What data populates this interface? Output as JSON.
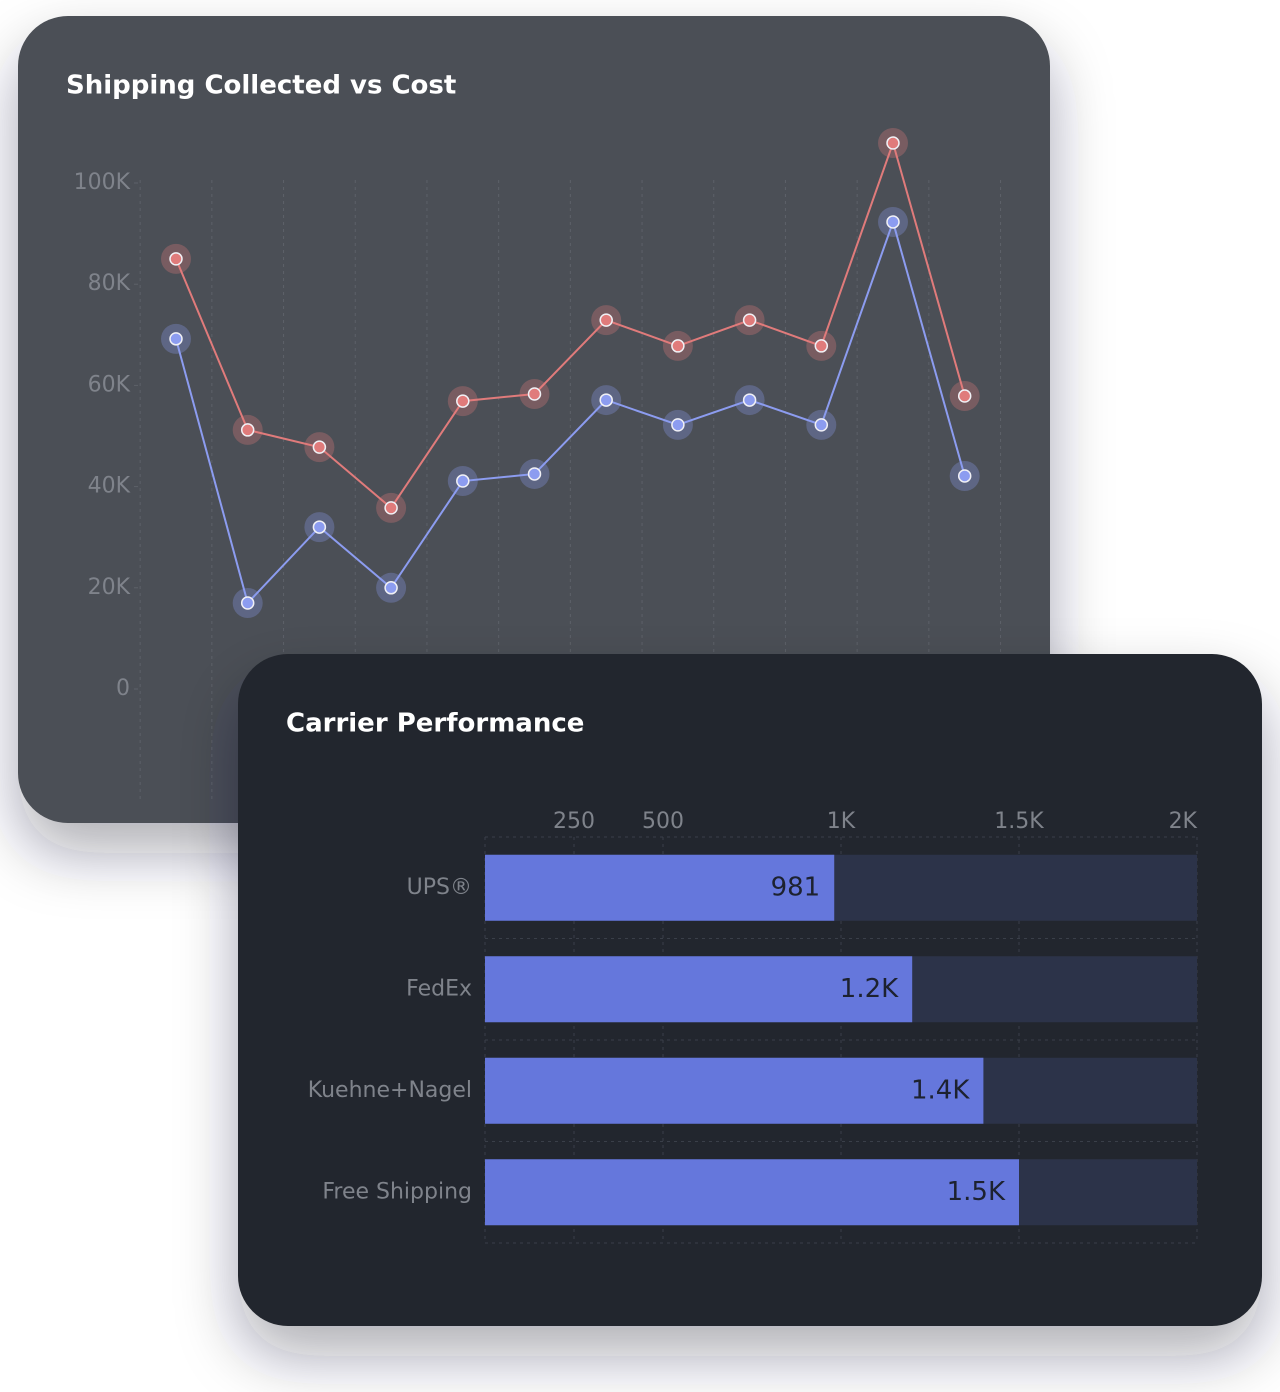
{
  "chart_data": [
    {
      "type": "line",
      "title": "Shipping Collected vs Cost",
      "series": [
        {
          "color": "#e07b7b",
          "values": [
            85000,
            51200,
            47800,
            35800,
            56900,
            58300,
            72900,
            67800,
            72900,
            67800,
            107900,
            57900
          ]
        },
        {
          "color": "#8c9cf0",
          "values": [
            69200,
            17000,
            32000,
            20000,
            41100,
            42500,
            57100,
            52200,
            57100,
            52200,
            92300,
            42100
          ]
        }
      ],
      "ylim": [
        0,
        100000
      ],
      "yticks": [
        {
          "value": 0,
          "label": "0"
        },
        {
          "value": 20000,
          "label": "20K"
        },
        {
          "value": 40000,
          "label": "40K"
        },
        {
          "value": 60000,
          "label": "60K"
        },
        {
          "value": 80000,
          "label": "80K"
        },
        {
          "value": 100000,
          "label": "100K"
        }
      ]
    },
    {
      "type": "hbar",
      "title": "Carrier Performance",
      "categories": [
        "UPS®",
        "FedEx",
        "Kuehne+Nagel",
        "Free Shipping"
      ],
      "values": [
        981,
        1200,
        1400,
        1500
      ],
      "value_labels": [
        "981",
        "1.2K",
        "1.4K",
        "1.5K"
      ],
      "color": "#6577dc",
      "xlim": [
        0,
        2000
      ],
      "xticks": [
        250,
        500,
        {
          "value": 1000,
          "label": "1K"
        },
        {
          "value": 1500,
          "label": "1.5K"
        },
        {
          "value": 2000,
          "label": "2K"
        }
      ]
    }
  ]
}
